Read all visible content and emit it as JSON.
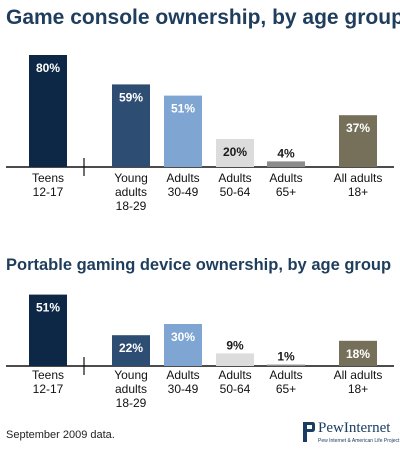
{
  "colors": {
    "teens": "#0d2846",
    "young_adults": "#2e4d72",
    "adults_30_49": "#7fa6d3",
    "adults_50_64": "#dcdcdc",
    "adults_65": "#8c8c8c",
    "all_adults": "#76705a"
  },
  "footnote": "September 2009 data.",
  "logo": {
    "name": "PewInternet",
    "subtitle": "Pew Internet & American Life Project"
  },
  "chart_data": [
    {
      "type": "bar",
      "title": "Game console ownership, by age group",
      "categories": [
        [
          "Teens",
          "12-17"
        ],
        [
          "Young",
          "adults",
          "18-29"
        ],
        [
          "Adults",
          "30-49"
        ],
        [
          "Adults",
          "50-64"
        ],
        [
          "Adults",
          "65+"
        ],
        [
          "All adults",
          "18+"
        ]
      ],
      "values": [
        80,
        59,
        51,
        20,
        4,
        37
      ],
      "value_labels": [
        "80%",
        "59%",
        "51%",
        "20%",
        "4%",
        "37%"
      ],
      "ylim": [
        0,
        100
      ],
      "grid": false,
      "xlabel": "",
      "ylabel": ""
    },
    {
      "type": "bar",
      "title": "Portable gaming device ownership, by age group",
      "categories": [
        [
          "Teens",
          "12-17"
        ],
        [
          "Young",
          "adults",
          "18-29"
        ],
        [
          "Adults",
          "30-49"
        ],
        [
          "Adults",
          "50-64"
        ],
        [
          "Adults",
          "65+"
        ],
        [
          "All adults",
          "18+"
        ]
      ],
      "values": [
        51,
        22,
        30,
        9,
        1,
        18
      ],
      "value_labels": [
        "51%",
        "22%",
        "30%",
        "9%",
        "1%",
        "18%"
      ],
      "ylim": [
        0,
        100
      ],
      "grid": false,
      "xlabel": "",
      "ylabel": ""
    }
  ]
}
